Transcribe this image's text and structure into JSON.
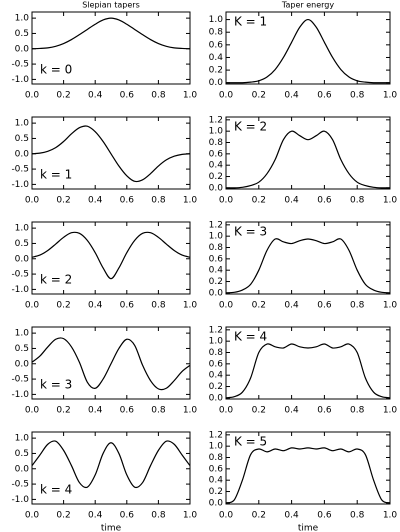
{
  "chart_data": [
    {
      "type": "line",
      "title": "Slepian tapers",
      "annotation": "k = 0",
      "color": "#000000",
      "x": [
        0,
        0.05,
        0.1,
        0.15,
        0.2,
        0.25,
        0.3,
        0.35,
        0.4,
        0.45,
        0.5,
        0.55,
        0.6,
        0.65,
        0.7,
        0.75,
        0.8,
        0.85,
        0.9,
        0.95,
        1
      ],
      "values": [
        0,
        0.01,
        0.03,
        0.08,
        0.17,
        0.3,
        0.46,
        0.63,
        0.8,
        0.94,
        1.0,
        0.94,
        0.8,
        0.63,
        0.46,
        0.3,
        0.17,
        0.08,
        0.03,
        0.01,
        0
      ],
      "xlim": [
        0,
        1
      ],
      "ylim": [
        -1.15,
        1.2
      ],
      "xticks": [
        {
          "value": 0,
          "label": "0.0"
        },
        {
          "value": 0.2,
          "label": "0.2"
        },
        {
          "value": 0.4,
          "label": "0.4"
        },
        {
          "value": 0.6,
          "label": "0.6"
        },
        {
          "value": 0.8,
          "label": "0.8"
        },
        {
          "value": 1,
          "label": "1.0"
        }
      ],
      "yticks": [
        {
          "value": -1,
          "label": "-1.0"
        },
        {
          "value": -0.5,
          "label": "-0.5"
        },
        {
          "value": 0,
          "label": "0.0"
        },
        {
          "value": 0.5,
          "label": "0.5"
        },
        {
          "value": 1,
          "label": "1.0"
        }
      ]
    },
    {
      "type": "line",
      "annotation": "k = 1",
      "color": "#000000",
      "x": [
        0,
        0.05,
        0.1,
        0.15,
        0.2,
        0.25,
        0.3,
        0.35,
        0.4,
        0.45,
        0.5,
        0.55,
        0.6,
        0.65,
        0.7,
        0.75,
        0.8,
        0.85,
        0.9,
        0.95,
        1
      ],
      "values": [
        0,
        0.02,
        0.08,
        0.2,
        0.4,
        0.65,
        0.85,
        0.9,
        0.72,
        0.4,
        0,
        -0.4,
        -0.72,
        -0.9,
        -0.85,
        -0.65,
        -0.4,
        -0.2,
        -0.08,
        -0.02,
        0
      ],
      "xlim": [
        0,
        1
      ],
      "ylim": [
        -1.15,
        1.2
      ],
      "xticks": [
        {
          "value": 0,
          "label": "0.0"
        },
        {
          "value": 0.2,
          "label": "0.2"
        },
        {
          "value": 0.4,
          "label": "0.4"
        },
        {
          "value": 0.6,
          "label": "0.6"
        },
        {
          "value": 0.8,
          "label": "0.8"
        },
        {
          "value": 1,
          "label": "1.0"
        }
      ],
      "yticks": [
        {
          "value": -1,
          "label": "-1.0"
        },
        {
          "value": -0.5,
          "label": "-0.5"
        },
        {
          "value": 0,
          "label": "0.0"
        },
        {
          "value": 0.5,
          "label": "0.5"
        },
        {
          "value": 1,
          "label": "1.0"
        }
      ]
    },
    {
      "type": "line",
      "annotation": "k = 2",
      "color": "#000000",
      "x": [
        0,
        0.05,
        0.1,
        0.15,
        0.2,
        0.25,
        0.3,
        0.35,
        0.4,
        0.45,
        0.5,
        0.55,
        0.6,
        0.65,
        0.7,
        0.75,
        0.8,
        0.85,
        0.9,
        0.95,
        1
      ],
      "values": [
        0.05,
        0.12,
        0.27,
        0.48,
        0.7,
        0.85,
        0.83,
        0.6,
        0.2,
        -0.3,
        -0.65,
        -0.3,
        0.2,
        0.6,
        0.83,
        0.85,
        0.7,
        0.48,
        0.27,
        0.12,
        0.05
      ],
      "xlim": [
        0,
        1
      ],
      "ylim": [
        -1.15,
        1.2
      ],
      "xticks": [
        {
          "value": 0,
          "label": "0.0"
        },
        {
          "value": 0.2,
          "label": "0.2"
        },
        {
          "value": 0.4,
          "label": "0.4"
        },
        {
          "value": 0.6,
          "label": "0.6"
        },
        {
          "value": 0.8,
          "label": "0.8"
        },
        {
          "value": 1,
          "label": "1.0"
        }
      ],
      "yticks": [
        {
          "value": -1,
          "label": "-1.0"
        },
        {
          "value": -0.5,
          "label": "-0.5"
        },
        {
          "value": 0,
          "label": "0.0"
        },
        {
          "value": 0.5,
          "label": "0.5"
        },
        {
          "value": 1,
          "label": "1.0"
        }
      ]
    },
    {
      "type": "line",
      "annotation": "k = 3",
      "color": "#000000",
      "x": [
        0,
        0.05,
        0.1,
        0.15,
        0.2,
        0.25,
        0.3,
        0.35,
        0.4,
        0.45,
        0.5,
        0.55,
        0.6,
        0.65,
        0.7,
        0.75,
        0.8,
        0.85,
        0.9,
        0.95,
        1
      ],
      "values": [
        0.05,
        0.25,
        0.55,
        0.8,
        0.82,
        0.55,
        0.05,
        -0.6,
        -0.8,
        -0.5,
        0,
        0.5,
        0.8,
        0.6,
        -0.05,
        -0.55,
        -0.82,
        -0.8,
        -0.55,
        -0.25,
        -0.05
      ],
      "xlim": [
        0,
        1
      ],
      "ylim": [
        -1.15,
        1.2
      ],
      "xticks": [
        {
          "value": 0,
          "label": "0.0"
        },
        {
          "value": 0.2,
          "label": "0.2"
        },
        {
          "value": 0.4,
          "label": "0.4"
        },
        {
          "value": 0.6,
          "label": "0.6"
        },
        {
          "value": 0.8,
          "label": "0.8"
        },
        {
          "value": 1,
          "label": "1.0"
        }
      ],
      "yticks": [
        {
          "value": -1,
          "label": "-1.0"
        },
        {
          "value": -0.5,
          "label": "-0.5"
        },
        {
          "value": 0,
          "label": "0.0"
        },
        {
          "value": 0.5,
          "label": "0.5"
        },
        {
          "value": 1,
          "label": "1.0"
        }
      ]
    },
    {
      "type": "line",
      "annotation": "k = 4",
      "x_label": "time",
      "color": "#000000",
      "x": [
        0,
        0.05,
        0.1,
        0.15,
        0.2,
        0.25,
        0.3,
        0.35,
        0.4,
        0.45,
        0.5,
        0.55,
        0.6,
        0.65,
        0.7,
        0.75,
        0.8,
        0.85,
        0.9,
        0.95,
        1
      ],
      "values": [
        0.1,
        0.45,
        0.8,
        0.9,
        0.6,
        0.1,
        -0.45,
        -0.6,
        -0.2,
        0.5,
        0.85,
        0.5,
        -0.2,
        -0.6,
        -0.45,
        0.1,
        0.6,
        0.9,
        0.8,
        0.45,
        0.1
      ],
      "xlim": [
        0,
        1
      ],
      "ylim": [
        -1.15,
        1.2
      ],
      "xticks": [
        {
          "value": 0,
          "label": "0.0"
        },
        {
          "value": 0.2,
          "label": "0.2"
        },
        {
          "value": 0.4,
          "label": "0.4"
        },
        {
          "value": 0.6,
          "label": "0.6"
        },
        {
          "value": 0.8,
          "label": "0.8"
        },
        {
          "value": 1,
          "label": "1.0"
        }
      ],
      "yticks": [
        {
          "value": -1,
          "label": "-1.0"
        },
        {
          "value": -0.5,
          "label": "-0.5"
        },
        {
          "value": 0,
          "label": "0.0"
        },
        {
          "value": 0.5,
          "label": "0.5"
        },
        {
          "value": 1,
          "label": "1.0"
        }
      ]
    },
    {
      "type": "line",
      "title": "Taper energy",
      "annotation": "K = 1",
      "color": "#000000",
      "x": [
        0,
        0.05,
        0.1,
        0.15,
        0.2,
        0.25,
        0.3,
        0.35,
        0.4,
        0.45,
        0.5,
        0.55,
        0.6,
        0.65,
        0.7,
        0.75,
        0.8,
        0.85,
        0.9,
        0.95,
        1
      ],
      "values": [
        0,
        0,
        0,
        0.01,
        0.03,
        0.09,
        0.21,
        0.4,
        0.64,
        0.88,
        1.0,
        0.88,
        0.64,
        0.4,
        0.21,
        0.09,
        0.03,
        0.01,
        0,
        0,
        0
      ],
      "xlim": [
        0,
        1
      ],
      "ylim": [
        -0.02,
        1.12
      ],
      "xticks": [
        {
          "value": 0,
          "label": "0.0"
        },
        {
          "value": 0.2,
          "label": "0.2"
        },
        {
          "value": 0.4,
          "label": "0.4"
        },
        {
          "value": 0.6,
          "label": "0.6"
        },
        {
          "value": 0.8,
          "label": "0.8"
        },
        {
          "value": 1,
          "label": "1.0"
        }
      ],
      "yticks": [
        {
          "value": 0,
          "label": "0.0"
        },
        {
          "value": 0.2,
          "label": "0.2"
        },
        {
          "value": 0.4,
          "label": "0.4"
        },
        {
          "value": 0.6,
          "label": "0.6"
        },
        {
          "value": 0.8,
          "label": "0.8"
        },
        {
          "value": 1,
          "label": "1.0"
        }
      ]
    },
    {
      "type": "line",
      "annotation": "K = 2",
      "color": "#000000",
      "x": [
        0,
        0.05,
        0.1,
        0.15,
        0.2,
        0.25,
        0.3,
        0.35,
        0.4,
        0.45,
        0.5,
        0.55,
        0.6,
        0.65,
        0.7,
        0.75,
        0.8,
        0.85,
        0.9,
        0.95,
        1
      ],
      "values": [
        0,
        0,
        0.01,
        0.04,
        0.1,
        0.25,
        0.5,
        0.85,
        1.0,
        0.92,
        0.85,
        0.92,
        1.0,
        0.85,
        0.5,
        0.25,
        0.1,
        0.04,
        0.01,
        0,
        0
      ],
      "xlim": [
        0,
        1
      ],
      "ylim": [
        -0.02,
        1.25
      ],
      "xticks": [
        {
          "value": 0,
          "label": "0.0"
        },
        {
          "value": 0.2,
          "label": "0.2"
        },
        {
          "value": 0.4,
          "label": "0.4"
        },
        {
          "value": 0.6,
          "label": "0.6"
        },
        {
          "value": 0.8,
          "label": "0.8"
        },
        {
          "value": 1,
          "label": "1.0"
        }
      ],
      "yticks": [
        {
          "value": 0,
          "label": "0.0"
        },
        {
          "value": 0.2,
          "label": "0.2"
        },
        {
          "value": 0.4,
          "label": "0.4"
        },
        {
          "value": 0.6,
          "label": "0.6"
        },
        {
          "value": 0.8,
          "label": "0.8"
        },
        {
          "value": 1,
          "label": "1.0"
        },
        {
          "value": 1.2,
          "label": "1.2"
        }
      ]
    },
    {
      "type": "line",
      "annotation": "K = 3",
      "color": "#000000",
      "x": [
        0,
        0.05,
        0.1,
        0.15,
        0.2,
        0.25,
        0.3,
        0.35,
        0.4,
        0.45,
        0.5,
        0.55,
        0.6,
        0.65,
        0.7,
        0.75,
        0.8,
        0.85,
        0.9,
        0.95,
        1
      ],
      "values": [
        0,
        0.01,
        0.05,
        0.15,
        0.4,
        0.75,
        0.95,
        0.9,
        0.87,
        0.92,
        0.95,
        0.92,
        0.87,
        0.9,
        0.95,
        0.75,
        0.4,
        0.15,
        0.05,
        0.01,
        0
      ],
      "xlim": [
        0,
        1
      ],
      "ylim": [
        -0.02,
        1.25
      ],
      "xticks": [
        {
          "value": 0,
          "label": "0.0"
        },
        {
          "value": 0.2,
          "label": "0.2"
        },
        {
          "value": 0.4,
          "label": "0.4"
        },
        {
          "value": 0.6,
          "label": "0.6"
        },
        {
          "value": 0.8,
          "label": "0.8"
        },
        {
          "value": 1,
          "label": "1.0"
        }
      ],
      "yticks": [
        {
          "value": 0,
          "label": "0.0"
        },
        {
          "value": 0.2,
          "label": "0.2"
        },
        {
          "value": 0.4,
          "label": "0.4"
        },
        {
          "value": 0.6,
          "label": "0.6"
        },
        {
          "value": 0.8,
          "label": "0.8"
        },
        {
          "value": 1,
          "label": "1.0"
        },
        {
          "value": 1.2,
          "label": "1.2"
        }
      ]
    },
    {
      "type": "line",
      "annotation": "K = 4",
      "color": "#000000",
      "x": [
        0,
        0.05,
        0.1,
        0.15,
        0.2,
        0.25,
        0.3,
        0.35,
        0.4,
        0.45,
        0.5,
        0.55,
        0.6,
        0.65,
        0.7,
        0.75,
        0.8,
        0.85,
        0.9,
        0.95,
        1
      ],
      "values": [
        0,
        0.02,
        0.1,
        0.35,
        0.8,
        0.95,
        0.9,
        0.88,
        0.95,
        0.9,
        0.88,
        0.9,
        0.95,
        0.88,
        0.9,
        0.95,
        0.8,
        0.35,
        0.1,
        0.02,
        0
      ],
      "xlim": [
        0,
        1
      ],
      "ylim": [
        -0.02,
        1.25
      ],
      "xticks": [
        {
          "value": 0,
          "label": "0.0"
        },
        {
          "value": 0.2,
          "label": "0.2"
        },
        {
          "value": 0.4,
          "label": "0.4"
        },
        {
          "value": 0.6,
          "label": "0.6"
        },
        {
          "value": 0.8,
          "label": "0.8"
        },
        {
          "value": 1,
          "label": "1.0"
        }
      ],
      "yticks": [
        {
          "value": 0,
          "label": "0.0"
        },
        {
          "value": 0.2,
          "label": "0.2"
        },
        {
          "value": 0.4,
          "label": "0.4"
        },
        {
          "value": 0.6,
          "label": "0.6"
        },
        {
          "value": 0.8,
          "label": "0.8"
        },
        {
          "value": 1,
          "label": "1.0"
        },
        {
          "value": 1.2,
          "label": "1.2"
        }
      ]
    },
    {
      "type": "line",
      "annotation": "K = 5",
      "x_label": "time",
      "color": "#000000",
      "x": [
        0,
        0.05,
        0.1,
        0.15,
        0.2,
        0.25,
        0.3,
        0.35,
        0.4,
        0.45,
        0.5,
        0.55,
        0.6,
        0.65,
        0.7,
        0.75,
        0.8,
        0.85,
        0.9,
        0.95,
        1
      ],
      "values": [
        0,
        0.05,
        0.4,
        0.85,
        0.95,
        0.9,
        0.95,
        0.92,
        0.97,
        0.95,
        0.97,
        0.95,
        0.97,
        0.92,
        0.95,
        0.9,
        0.95,
        0.85,
        0.4,
        0.05,
        0
      ],
      "xlim": [
        0,
        1
      ],
      "ylim": [
        -0.02,
        1.25
      ],
      "xticks": [
        {
          "value": 0,
          "label": "0.0"
        },
        {
          "value": 0.2,
          "label": "0.2"
        },
        {
          "value": 0.4,
          "label": "0.4"
        },
        {
          "value": 0.6,
          "label": "0.6"
        },
        {
          "value": 0.8,
          "label": "0.8"
        },
        {
          "value": 1,
          "label": "1.0"
        }
      ],
      "yticks": [
        {
          "value": 0,
          "label": "0.0"
        },
        {
          "value": 0.2,
          "label": "0.2"
        },
        {
          "value": 0.4,
          "label": "0.4"
        },
        {
          "value": 0.6,
          "label": "0.6"
        },
        {
          "value": 0.8,
          "label": "0.8"
        },
        {
          "value": 1,
          "label": "1.0"
        },
        {
          "value": 1.2,
          "label": "1.2"
        }
      ]
    }
  ]
}
